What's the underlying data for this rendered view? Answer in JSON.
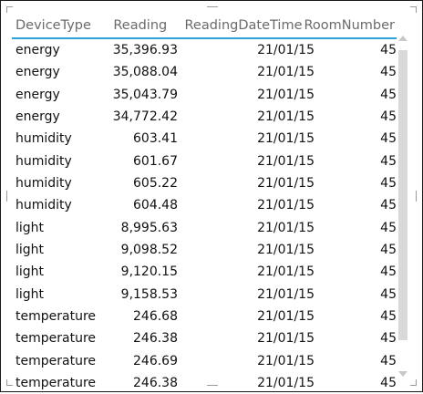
{
  "table": {
    "headers": [
      "DeviceType",
      "Reading",
      "ReadingDateTime",
      "RoomNumber"
    ],
    "rows": [
      [
        "energy",
        "35,396.93",
        "21/01/15",
        "45"
      ],
      [
        "energy",
        "35,088.04",
        "21/01/15",
        "45"
      ],
      [
        "energy",
        "35,043.79",
        "21/01/15",
        "45"
      ],
      [
        "energy",
        "34,772.42",
        "21/01/15",
        "45"
      ],
      [
        "humidity",
        "603.41",
        "21/01/15",
        "45"
      ],
      [
        "humidity",
        "601.67",
        "21/01/15",
        "45"
      ],
      [
        "humidity",
        "605.22",
        "21/01/15",
        "45"
      ],
      [
        "humidity",
        "604.48",
        "21/01/15",
        "45"
      ],
      [
        "light",
        "8,995.63",
        "21/01/15",
        "45"
      ],
      [
        "light",
        "9,098.52",
        "21/01/15",
        "45"
      ],
      [
        "light",
        "9,120.15",
        "21/01/15",
        "45"
      ],
      [
        "light",
        "9,158.53",
        "21/01/15",
        "45"
      ],
      [
        "temperature",
        "246.68",
        "21/01/15",
        "45"
      ],
      [
        "temperature",
        "246.38",
        "21/01/15",
        "45"
      ],
      [
        "temperature",
        "246.69",
        "21/01/15",
        "45"
      ],
      [
        "temperature",
        "246.38",
        "21/01/15",
        "45"
      ]
    ]
  },
  "scrollbar": {
    "thumb_fraction": 0.85,
    "position_fraction": 0.0
  }
}
